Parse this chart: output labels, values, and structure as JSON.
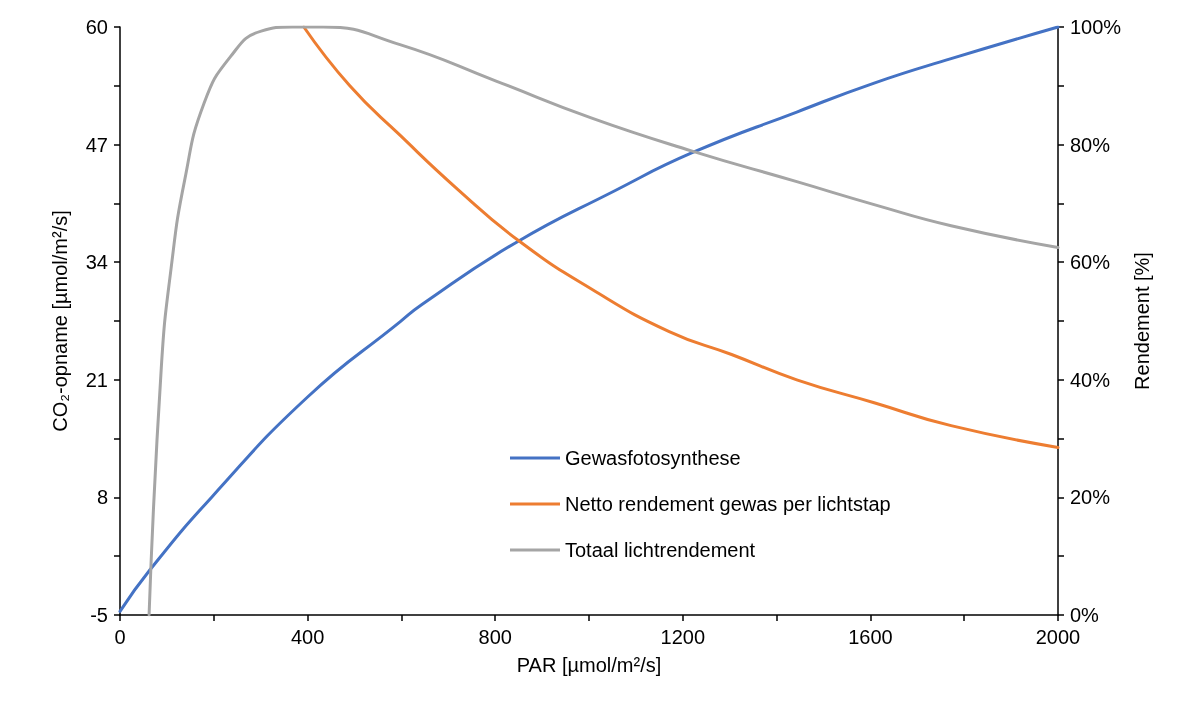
{
  "chart_data": {
    "type": "line",
    "xlabel": "PAR [µmol/m²/s]",
    "ylabel": "CO₂-opname [µmol/m²/s]",
    "y2label": "Rendement [%]",
    "xlim": [
      0,
      2000
    ],
    "xticks": [
      0,
      {
        "value": 200,
        "label": null
      },
      400,
      {
        "value": 600,
        "label": null
      },
      800,
      {
        "value": 1000,
        "label": null
      },
      1200,
      {
        "value": 1400,
        "label": null
      },
      1600,
      {
        "value": 1800,
        "label": null
      },
      2000
    ],
    "ylim": [
      -5,
      60
    ],
    "yticks": [
      -5,
      {
        "value": 1.5,
        "label": null
      },
      8,
      {
        "value": 14.5,
        "label": null
      },
      21,
      {
        "value": 27.5,
        "label": null
      },
      34,
      {
        "value": 40.5,
        "label": null
      },
      47,
      {
        "value": 53.5,
        "label": null
      },
      60
    ],
    "y2lim": [
      0,
      100
    ],
    "y2ticks": [
      {
        "value": 0,
        "label": "0%"
      },
      {
        "value": 10,
        "label": null
      },
      {
        "value": 20,
        "label": "20%"
      },
      {
        "value": 30,
        "label": null
      },
      {
        "value": 40,
        "label": "40%"
      },
      {
        "value": 50,
        "label": null
      },
      {
        "value": 60,
        "label": "60%"
      },
      {
        "value": 70,
        "label": null
      },
      {
        "value": 80,
        "label": "80%"
      },
      {
        "value": 90,
        "label": null
      },
      {
        "value": 100,
        "label": "100%"
      }
    ],
    "grid": false,
    "legend": "bottom",
    "marker": "none",
    "line_style": "solid",
    "series": [
      {
        "name": "Gewasfotosynthese",
        "color": "#4472c4",
        "x": [
          0,
          64,
          195,
          400,
          597,
          643,
          842,
          1055,
          1220,
          1443,
          1608,
          1772,
          2000
        ],
        "values": [
          -4.6,
          0,
          8,
          19.1,
          27.4,
          29.3,
          36.1,
          41.9,
          46.1,
          50.6,
          53.8,
          56.5,
          60
        ]
      },
      {
        "name": "Netto rendement gewas per lichtstap",
        "color": "#ed7d31",
        "axis": "y2",
        "x": [
          392,
          490,
          597,
          720,
          851,
          1006,
          1171,
          1304,
          1443,
          1608,
          1772,
          2000
        ],
        "values": [
          100,
          90,
          81.6,
          72.4,
          63.6,
          55.4,
          48.2,
          44.3,
          40,
          36.1,
          32.2,
          28.5
        ]
      },
      {
        "name": "Totaal lichtrendement",
        "color": "#a5a5a5",
        "axis": "y2",
        "x": [
          62,
          88,
          109,
          138,
          179,
          236,
          301,
          367,
          433,
          597,
          802,
          1006,
          1220,
          1443,
          1608,
          1772,
          2000
        ],
        "values": [
          0,
          42,
          59,
          74,
          87,
          95,
          99.3,
          100,
          100,
          97,
          90.8,
          84.5,
          78.9,
          73.7,
          69.8,
          66.2,
          62.5
        ]
      }
    ]
  }
}
